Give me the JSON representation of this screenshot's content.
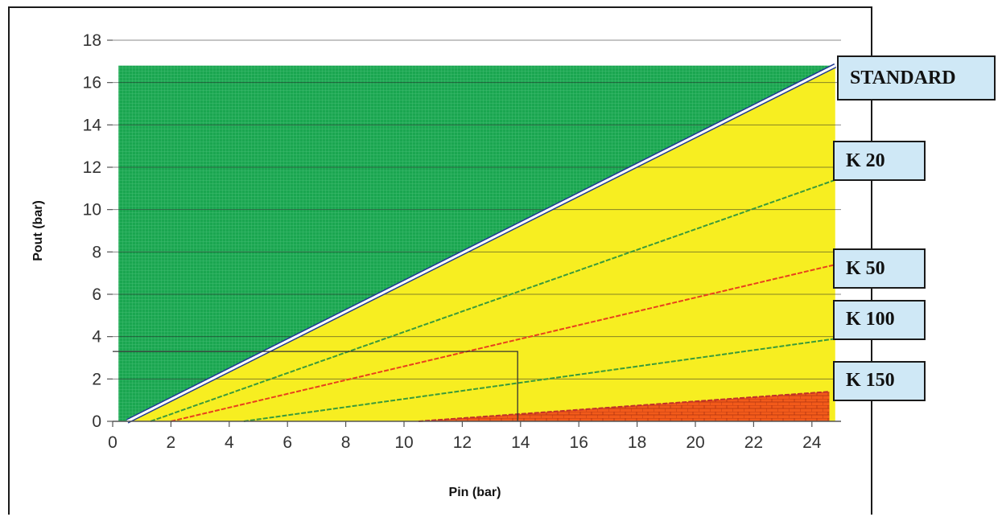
{
  "chart_data": {
    "type": "area",
    "xlabel": "Pin (bar)",
    "ylabel": "Pout (bar)",
    "xlim": [
      0,
      25
    ],
    "ylim": [
      0,
      18
    ],
    "x_ticks": [
      0,
      2,
      4,
      6,
      8,
      10,
      12,
      14,
      16,
      18,
      20,
      22,
      24
    ],
    "y_ticks": [
      0,
      2,
      4,
      6,
      8,
      10,
      12,
      14,
      16,
      18
    ],
    "grid": true,
    "regions": [
      {
        "name": "above-standard",
        "color": "#1aa650",
        "polygon": [
          [
            0.2,
            0
          ],
          [
            0.2,
            16.8
          ],
          [
            24.8,
            16.8
          ],
          [
            0.5,
            0
          ]
        ]
      },
      {
        "name": "standard-to-k150",
        "color": "#f7ee21",
        "polygon": [
          [
            0.5,
            0
          ],
          [
            24.8,
            16.8
          ],
          [
            24.8,
            0
          ]
        ]
      },
      {
        "name": "below-k150",
        "color": "#f25a1a",
        "polygon": [
          [
            10.5,
            0
          ],
          [
            24.6,
            1.4
          ],
          [
            24.6,
            0
          ]
        ]
      }
    ],
    "series": [
      {
        "name": "STANDARD",
        "color": "#ffffff",
        "outline": "#1f3a93",
        "points": [
          [
            0.5,
            0
          ],
          [
            24.8,
            16.8
          ]
        ]
      },
      {
        "name": "K 20",
        "color": "#3a9a3a",
        "points": [
          [
            1.3,
            0
          ],
          [
            24.8,
            11.4
          ]
        ]
      },
      {
        "name": "K 50",
        "color": "#e8401c",
        "points": [
          [
            2.0,
            0
          ],
          [
            24.8,
            7.4
          ]
        ]
      },
      {
        "name": "K 100",
        "color": "#3a9a3a",
        "points": [
          [
            4.5,
            0
          ],
          [
            24.8,
            3.9
          ]
        ]
      },
      {
        "name": "K 150",
        "color": "#c0302a",
        "points": [
          [
            10.5,
            0
          ],
          [
            24.6,
            1.4
          ]
        ]
      }
    ],
    "reference_box": {
      "x": [
        0,
        13.9
      ],
      "y": [
        0,
        3.3
      ]
    },
    "callouts": [
      {
        "label": "STANDARD",
        "y": 16.2
      },
      {
        "label": "K 20",
        "y": 12.3
      },
      {
        "label": "K 50",
        "y": 7.2
      },
      {
        "label": "K 100",
        "y": 4.8
      },
      {
        "label": "K 150",
        "y": 1.9
      }
    ]
  }
}
